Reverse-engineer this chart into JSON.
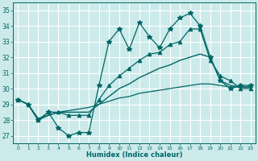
{
  "xlabel": "Humidex (Indice chaleur)",
  "xlim": [
    -0.5,
    23.5
  ],
  "ylim": [
    26.5,
    35.5
  ],
  "yticks": [
    27,
    28,
    29,
    30,
    31,
    32,
    33,
    34,
    35
  ],
  "xticks": [
    0,
    1,
    2,
    3,
    4,
    5,
    6,
    7,
    8,
    9,
    10,
    11,
    12,
    13,
    14,
    15,
    16,
    17,
    18,
    19,
    20,
    21,
    22,
    23
  ],
  "bg_color": "#cceaea",
  "line_color": "#006666",
  "grid_color": "#ffffff",
  "lines": [
    {
      "x": [
        0,
        1,
        2,
        3,
        4,
        5,
        6,
        7,
        8,
        9,
        10,
        11,
        12,
        13,
        14,
        15,
        16,
        17,
        18,
        19,
        20,
        21,
        22,
        23
      ],
      "y": [
        29.3,
        29.0,
        28.0,
        28.5,
        27.5,
        27.0,
        27.2,
        27.2,
        30.2,
        33.0,
        33.8,
        32.5,
        34.2,
        33.3,
        32.6,
        33.8,
        34.5,
        34.8,
        34.0,
        32.0,
        30.5,
        30.0,
        30.2,
        30.2
      ],
      "marker": "*",
      "markersize": 4,
      "lw": 0.9
    },
    {
      "x": [
        0,
        1,
        2,
        3,
        4,
        5,
        6,
        7,
        8,
        9,
        10,
        11,
        12,
        13,
        14,
        15,
        16,
        17,
        18,
        19,
        20,
        21,
        22,
        23
      ],
      "y": [
        29.3,
        29.0,
        28.0,
        28.5,
        28.5,
        28.3,
        28.3,
        28.3,
        29.3,
        30.2,
        30.8,
        31.3,
        31.8,
        32.2,
        32.3,
        32.8,
        33.0,
        33.8,
        33.8,
        31.8,
        30.8,
        30.5,
        30.0,
        30.0
      ],
      "marker": "^",
      "markersize": 3,
      "lw": 0.9
    },
    {
      "x": [
        0,
        1,
        2,
        3,
        4,
        5,
        6,
        7,
        8,
        9,
        10,
        11,
        12,
        13,
        14,
        15,
        16,
        17,
        18,
        19,
        20,
        21,
        22,
        23
      ],
      "y": [
        29.3,
        29.0,
        28.0,
        28.3,
        28.5,
        28.5,
        28.5,
        28.5,
        29.0,
        29.5,
        30.0,
        30.3,
        30.7,
        31.0,
        31.3,
        31.5,
        31.8,
        32.0,
        32.2,
        32.0,
        30.5,
        30.2,
        30.1,
        30.1
      ],
      "marker": null,
      "markersize": 0,
      "lw": 1.0
    },
    {
      "x": [
        0,
        1,
        2,
        3,
        4,
        5,
        6,
        7,
        8,
        9,
        10,
        11,
        12,
        13,
        14,
        15,
        16,
        17,
        18,
        19,
        20,
        21,
        22,
        23
      ],
      "y": [
        29.3,
        29.0,
        28.1,
        28.3,
        28.5,
        28.6,
        28.7,
        28.8,
        29.0,
        29.2,
        29.4,
        29.5,
        29.7,
        29.8,
        29.9,
        30.0,
        30.1,
        30.2,
        30.3,
        30.3,
        30.2,
        30.1,
        30.1,
        30.1
      ],
      "marker": null,
      "markersize": 0,
      "lw": 0.9
    }
  ]
}
